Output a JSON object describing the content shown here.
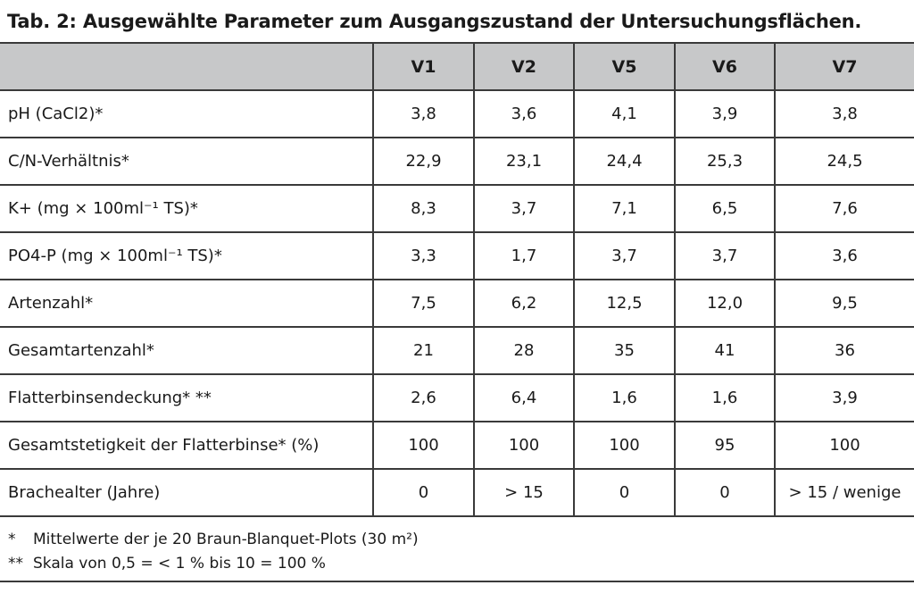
{
  "title": "Tab. 2: Ausgewählte Parameter zum Ausgangszustand der Untersuchungsflächen.",
  "table": {
    "columns": [
      "",
      "V1",
      "V2",
      "V5",
      "V6",
      "V7"
    ],
    "rows": [
      {
        "label": "pH (CaCl2)*",
        "values": [
          "3,8",
          "3,6",
          "4,1",
          "3,9",
          "3,8"
        ]
      },
      {
        "label": "C/N-Verhältnis*",
        "values": [
          "22,9",
          "23,1",
          "24,4",
          "25,3",
          "24,5"
        ]
      },
      {
        "label": "K+ (mg × 100ml⁻¹ TS)*",
        "values": [
          "8,3",
          "3,7",
          "7,1",
          "6,5",
          "7,6"
        ]
      },
      {
        "label": "PO4-P (mg × 100ml⁻¹ TS)*",
        "values": [
          "3,3",
          "1,7",
          "3,7",
          "3,7",
          "3,6"
        ]
      },
      {
        "label": "Artenzahl*",
        "values": [
          "7,5",
          "6,2",
          "12,5",
          "12,0",
          "9,5"
        ]
      },
      {
        "label": "Gesamtartenzahl*",
        "values": [
          "21",
          "28",
          "35",
          "41",
          "36"
        ]
      },
      {
        "label": "Flatterbinsendeckung*  **",
        "values": [
          "2,6",
          "6,4",
          "1,6",
          "1,6",
          "3,9"
        ]
      },
      {
        "label": "Gesamtstetigkeit der Flatterbinse* (%)",
        "values": [
          "100",
          "100",
          "100",
          "95",
          "100"
        ]
      },
      {
        "label": "Brachealter (Jahre)",
        "values": [
          "0",
          "> 15",
          "0",
          "0",
          "> 15 / wenige"
        ]
      }
    ]
  },
  "notes": [
    {
      "mark": "*",
      "text": "Mittelwerte der je 20 Braun-Blanquet-Plots (30 m²)"
    },
    {
      "mark": "**",
      "text": "Skala von 0,5 = < 1 % bis 10 = 100 %"
    }
  ]
}
